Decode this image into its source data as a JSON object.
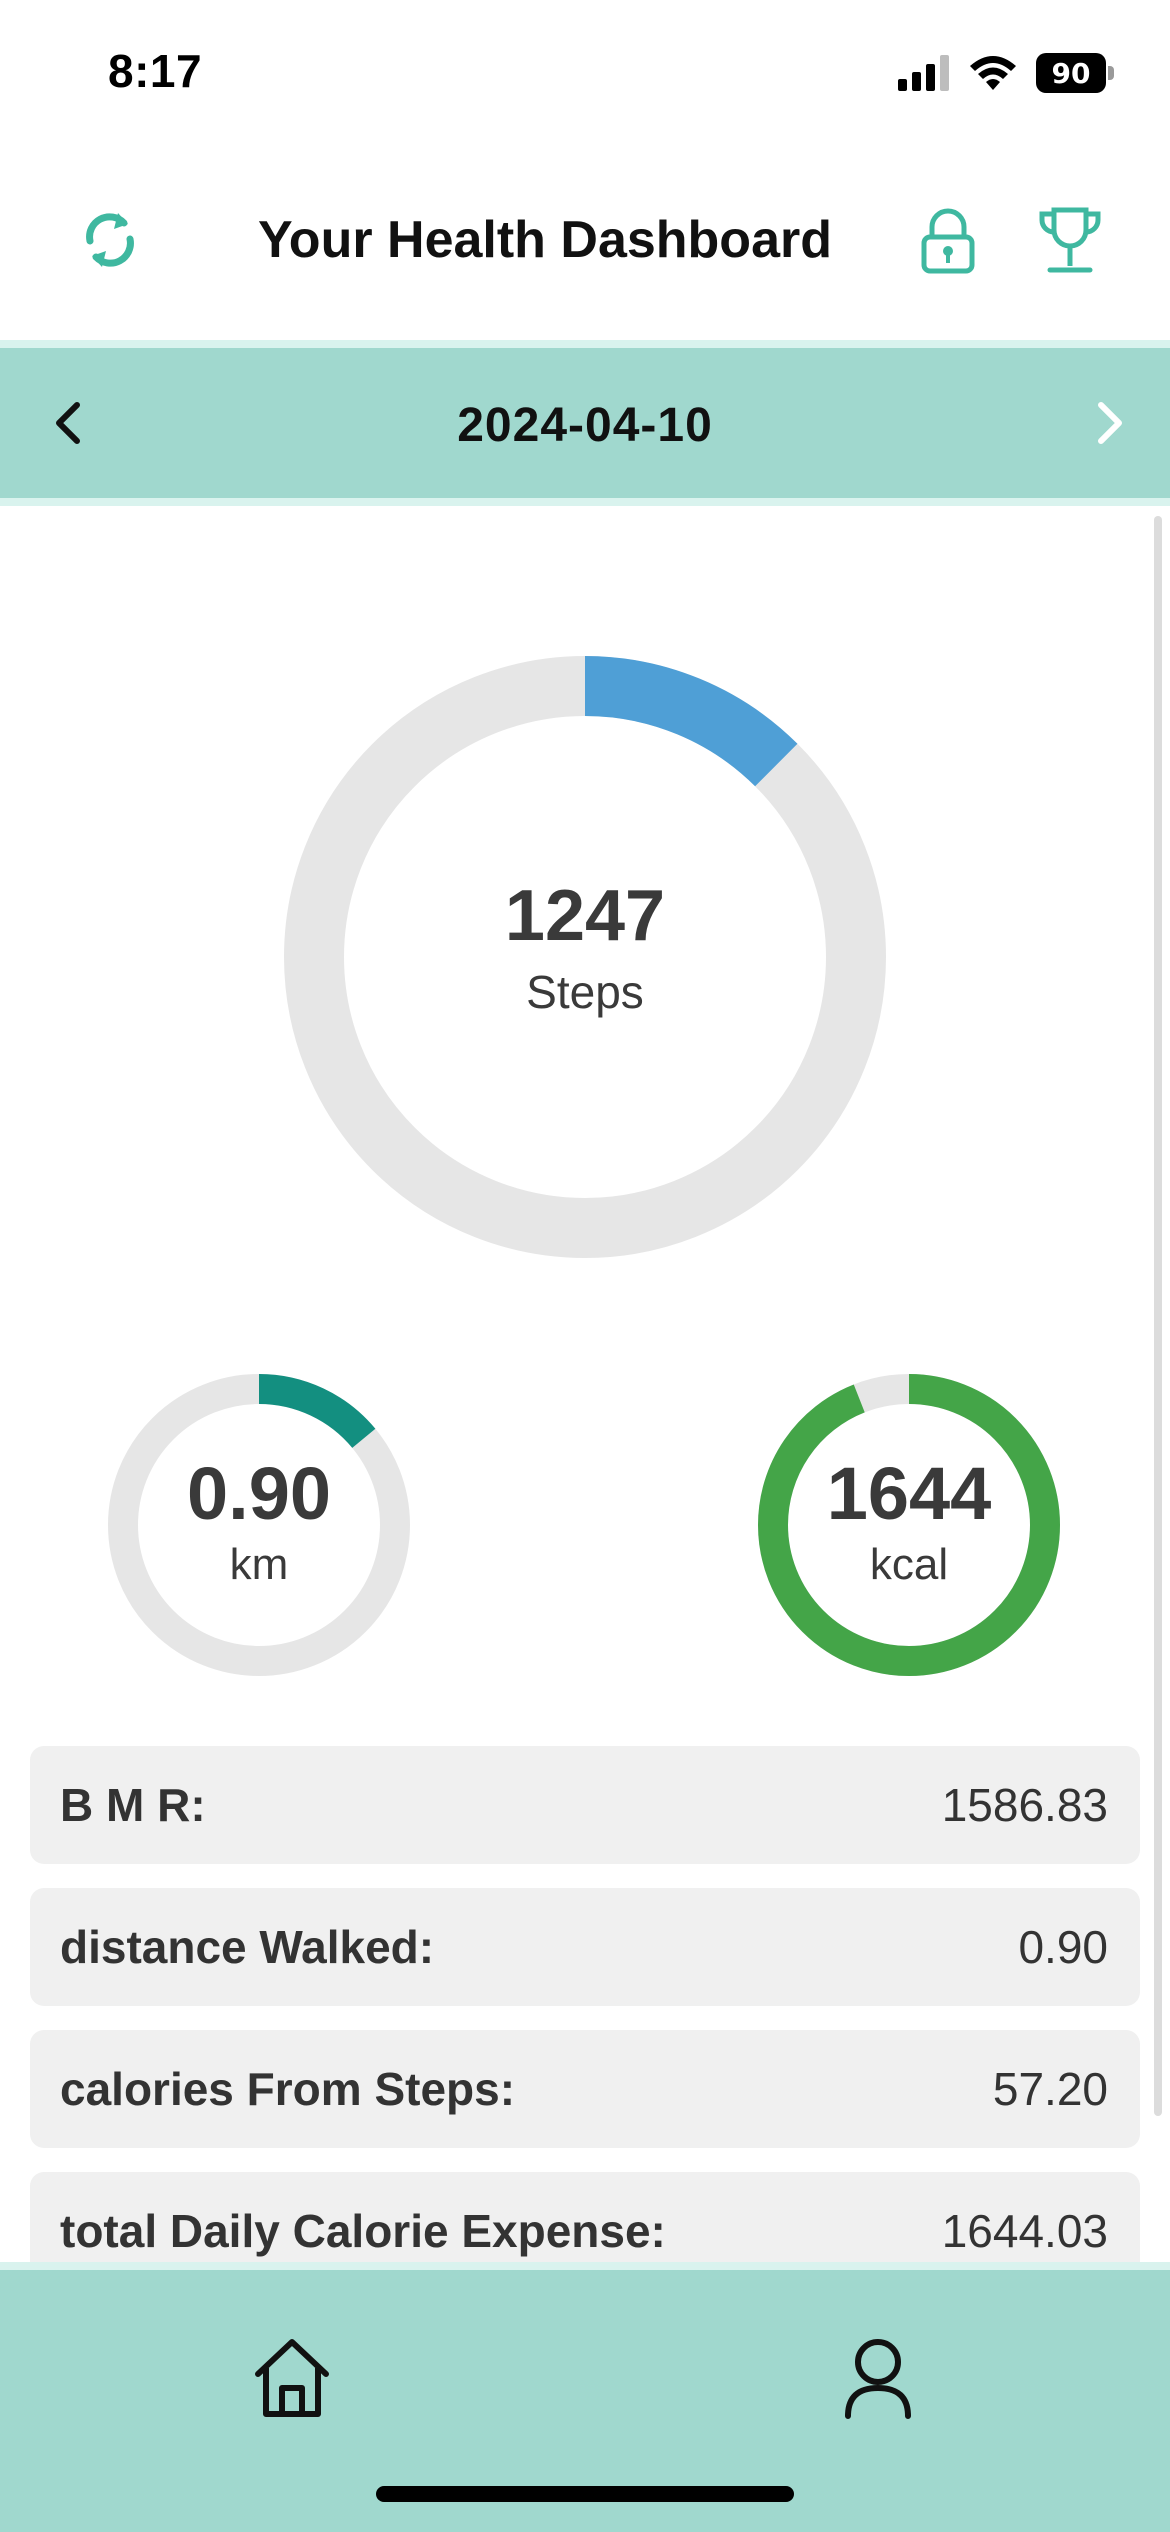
{
  "status_bar": {
    "time": "8:17",
    "battery_level": "90",
    "icons": [
      "signal-icon",
      "wifi-icon",
      "battery-icon"
    ]
  },
  "header": {
    "title": "Your Health Dashboard",
    "icons": [
      "sync-icon",
      "lock-icon",
      "trophy-icon"
    ],
    "accent_color": "#3fb8a0"
  },
  "date_bar": {
    "date": "2024-04-10",
    "background_color": "#a0d8ce",
    "icons": [
      "chevron-left-icon",
      "chevron-right-icon"
    ]
  },
  "rings": {
    "steps": {
      "value": "1247",
      "unit": "Steps",
      "progress_fraction": 0.1247,
      "color": "#4f9fd6"
    },
    "distance": {
      "value": "0.90",
      "unit": "km",
      "progress_fraction": 0.14,
      "color": "#138f80"
    },
    "calories": {
      "value": "1644",
      "unit": "kcal",
      "progress_fraction": 0.94,
      "color": "#44a548"
    },
    "track_color": "#e6e6e6"
  },
  "stats": [
    {
      "label": "B M R:",
      "value": "1586.83"
    },
    {
      "label": "distance Walked:",
      "value": "0.90"
    },
    {
      "label": "calories From Steps:",
      "value": "57.20"
    },
    {
      "label": "total Daily Calorie Expense:",
      "value": "1644.03"
    }
  ],
  "bottom_nav": {
    "items": [
      "home-icon",
      "profile-icon"
    ],
    "background_color": "#a0d8ce"
  }
}
